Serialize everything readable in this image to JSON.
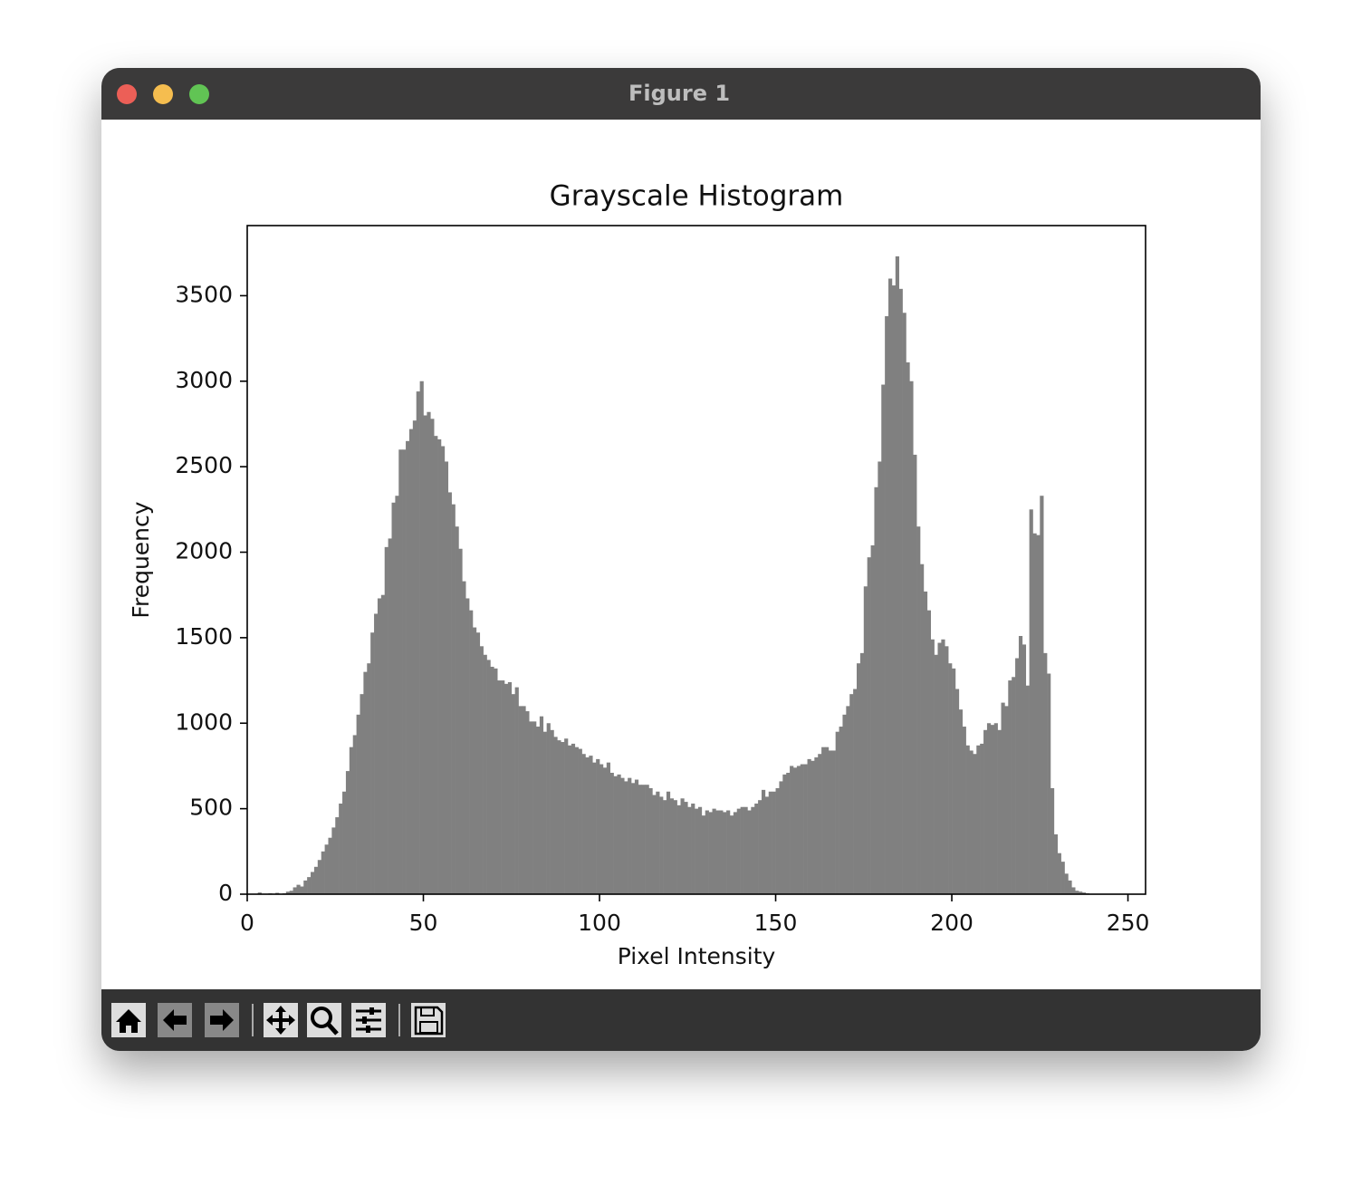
{
  "window": {
    "title": "Figure 1"
  },
  "chart_data": {
    "type": "histogram",
    "title": "Grayscale Histogram",
    "x_label": "Pixel Intensity",
    "y_label": "Frequency",
    "color": "#808080",
    "xlim": [
      0,
      255
    ],
    "ylim": [
      0,
      3910
    ],
    "xticks": [
      0,
      50,
      100,
      150,
      200,
      250
    ],
    "yticks": [
      0,
      500,
      1000,
      1500,
      2000,
      2500,
      3000,
      3500
    ],
    "bins": [
      0,
      1,
      2,
      3,
      4,
      5,
      6,
      7,
      8,
      9,
      10,
      11,
      12,
      13,
      14,
      15,
      16,
      17,
      18,
      19,
      20,
      21,
      22,
      23,
      24,
      25,
      26,
      27,
      28,
      29,
      30,
      31,
      32,
      33,
      34,
      35,
      36,
      37,
      38,
      39,
      40,
      41,
      42,
      43,
      44,
      45,
      46,
      47,
      48,
      49,
      50,
      51,
      52,
      53,
      54,
      55,
      56,
      57,
      58,
      59,
      60,
      61,
      62,
      63,
      64,
      65,
      66,
      67,
      68,
      69,
      70,
      71,
      72,
      73,
      74,
      75,
      76,
      77,
      78,
      79,
      80,
      81,
      82,
      83,
      84,
      85,
      86,
      87,
      88,
      89,
      90,
      91,
      92,
      93,
      94,
      95,
      96,
      97,
      98,
      99,
      100,
      101,
      102,
      103,
      104,
      105,
      106,
      107,
      108,
      109,
      110,
      111,
      112,
      113,
      114,
      115,
      116,
      117,
      118,
      119,
      120,
      121,
      122,
      123,
      124,
      125,
      126,
      127,
      128,
      129,
      130,
      131,
      132,
      133,
      134,
      135,
      136,
      137,
      138,
      139,
      140,
      141,
      142,
      143,
      144,
      145,
      146,
      147,
      148,
      149,
      150,
      151,
      152,
      153,
      154,
      155,
      156,
      157,
      158,
      159,
      160,
      161,
      162,
      163,
      164,
      165,
      166,
      167,
      168,
      169,
      170,
      171,
      172,
      173,
      174,
      175,
      176,
      177,
      178,
      179,
      180,
      181,
      182,
      183,
      184,
      185,
      186,
      187,
      188,
      189,
      190,
      191,
      192,
      193,
      194,
      195,
      196,
      197,
      198,
      199,
      200,
      201,
      202,
      203,
      204,
      205,
      206,
      207,
      208,
      209,
      210,
      211,
      212,
      213,
      214,
      215,
      216,
      217,
      218,
      219,
      220,
      221,
      222,
      223,
      224,
      225,
      226,
      227,
      228,
      229,
      230,
      231,
      232,
      233,
      234,
      235,
      236,
      237,
      238,
      239,
      240,
      241,
      242,
      243,
      244,
      245,
      246,
      247,
      248,
      249,
      250,
      251,
      252,
      253,
      254,
      255,
      256
    ],
    "values": [
      0,
      0,
      0,
      10,
      0,
      0,
      5,
      0,
      8,
      0,
      5,
      15,
      20,
      40,
      55,
      45,
      80,
      100,
      130,
      160,
      200,
      250,
      290,
      330,
      390,
      450,
      530,
      600,
      720,
      860,
      930,
      1050,
      1170,
      1300,
      1350,
      1530,
      1640,
      1730,
      1750,
      2030,
      2080,
      2290,
      2330,
      2600,
      2600,
      2650,
      2720,
      2770,
      2940,
      3000,
      2800,
      2820,
      2780,
      2680,
      2660,
      2620,
      2530,
      2350,
      2280,
      2150,
      2020,
      1830,
      1730,
      1660,
      1560,
      1530,
      1450,
      1400,
      1370,
      1330,
      1320,
      1250,
      1250,
      1230,
      1240,
      1170,
      1210,
      1100,
      1100,
      1070,
      1010,
      1010,
      980,
      1040,
      950,
      1000,
      960,
      920,
      900,
      890,
      910,
      870,
      880,
      860,
      850,
      820,
      800,
      810,
      770,
      790,
      760,
      740,
      770,
      710,
      690,
      700,
      680,
      660,
      680,
      650,
      670,
      640,
      640,
      640,
      620,
      580,
      600,
      570,
      550,
      600,
      560,
      550,
      520,
      560,
      540,
      510,
      530,
      500,
      510,
      460,
      490,
      480,
      500,
      490,
      490,
      480,
      490,
      460,
      480,
      500,
      510,
      510,
      490,
      510,
      530,
      550,
      610,
      570,
      600,
      600,
      620,
      660,
      700,
      710,
      750,
      740,
      750,
      760,
      760,
      790,
      780,
      800,
      820,
      860,
      860,
      840,
      840,
      950,
      980,
      1050,
      1100,
      1170,
      1200,
      1350,
      1410,
      1800,
      1970,
      2040,
      2380,
      2530,
      2980,
      3380,
      3600,
      3560,
      3730,
      3540,
      3400,
      3110,
      3000,
      2570,
      2150,
      1930,
      1770,
      1660,
      1490,
      1400,
      1470,
      1490,
      1450,
      1350,
      1320,
      1200,
      1080,
      980,
      870,
      840,
      820,
      870,
      880,
      960,
      1000,
      990,
      1000,
      960,
      1120,
      1100,
      1250,
      1270,
      1380,
      1510,
      1460,
      1220,
      2250,
      2110,
      2100,
      2330,
      1410,
      1290,
      620,
      350,
      240,
      190,
      120,
      80,
      40,
      20,
      15,
      10,
      5,
      0,
      0,
      0,
      0,
      0,
      0,
      0,
      0,
      0,
      0,
      0,
      0,
      0,
      0,
      0,
      0,
      0
    ]
  }
}
